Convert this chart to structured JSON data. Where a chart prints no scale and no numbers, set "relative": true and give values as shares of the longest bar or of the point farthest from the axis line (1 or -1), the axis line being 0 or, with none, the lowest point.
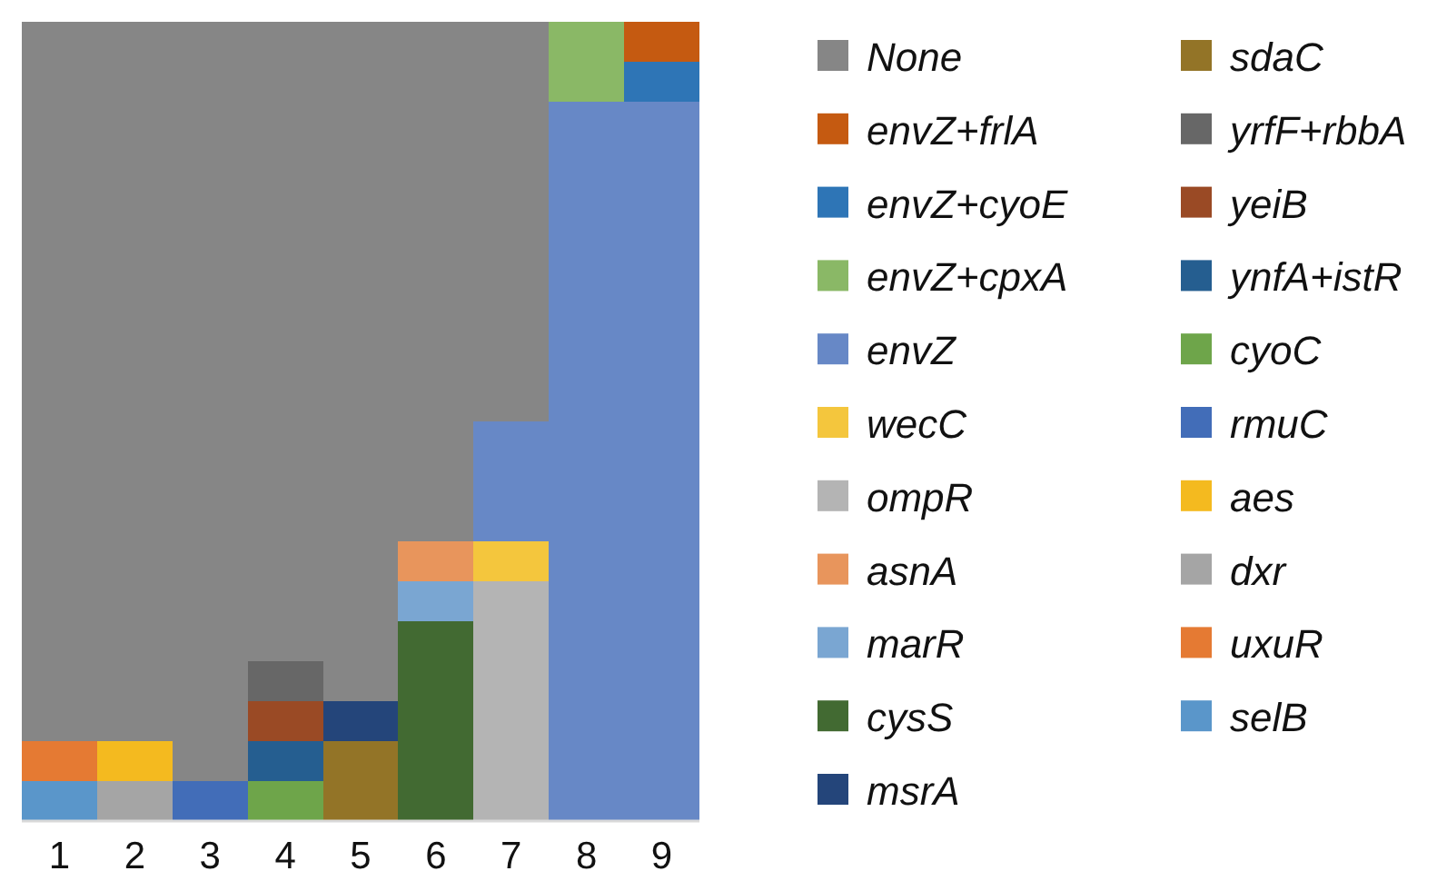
{
  "chart_data": {
    "type": "bar",
    "stacked": true,
    "relative": true,
    "legend": "right",
    "categories": [
      "1",
      "2",
      "3",
      "4",
      "5",
      "6",
      "7",
      "8",
      "9"
    ],
    "series": [
      {
        "name": "selB",
        "color": "#5a96ca",
        "values": [
          0.05,
          null,
          null,
          null,
          null,
          null,
          null,
          null,
          null
        ]
      },
      {
        "name": "uxuR",
        "color": "#e57a33",
        "values": [
          0.05,
          null,
          null,
          null,
          null,
          null,
          null,
          null,
          null
        ]
      },
      {
        "name": "dxr",
        "color": "#a5a5a5",
        "values": [
          null,
          0.05,
          null,
          null,
          null,
          null,
          null,
          null,
          null
        ]
      },
      {
        "name": "aes",
        "color": "#f4ba1f",
        "values": [
          null,
          0.05,
          null,
          null,
          null,
          null,
          null,
          null,
          null
        ]
      },
      {
        "name": "rmuC",
        "color": "#426db8",
        "values": [
          null,
          null,
          0.05,
          null,
          null,
          null,
          null,
          null,
          null
        ]
      },
      {
        "name": "cyoC",
        "color": "#6ea54a",
        "values": [
          null,
          null,
          null,
          0.05,
          null,
          null,
          null,
          null,
          null
        ]
      },
      {
        "name": "ynfA+istR",
        "color": "#255e90",
        "values": [
          null,
          null,
          null,
          0.05,
          null,
          null,
          null,
          null,
          null
        ]
      },
      {
        "name": "yeiB",
        "color": "#9a4a25",
        "values": [
          null,
          null,
          null,
          0.05,
          null,
          null,
          null,
          null,
          null
        ]
      },
      {
        "name": "yrfF+rbbA",
        "color": "#676767",
        "values": [
          null,
          null,
          null,
          0.05,
          null,
          null,
          null,
          null,
          null
        ]
      },
      {
        "name": "sdaC",
        "color": "#937427",
        "values": [
          null,
          null,
          null,
          null,
          0.1,
          null,
          null,
          null,
          null
        ]
      },
      {
        "name": "msrA",
        "color": "#24457a",
        "values": [
          null,
          null,
          null,
          null,
          0.05,
          null,
          null,
          null,
          null
        ]
      },
      {
        "name": "cysS",
        "color": "#426a32",
        "values": [
          null,
          null,
          null,
          null,
          null,
          0.25,
          null,
          null,
          null
        ]
      },
      {
        "name": "marR",
        "color": "#7aa6d2",
        "values": [
          null,
          null,
          null,
          null,
          null,
          0.05,
          null,
          null,
          null
        ]
      },
      {
        "name": "asnA",
        "color": "#e8955c",
        "values": [
          null,
          null,
          null,
          null,
          null,
          0.05,
          null,
          null,
          null
        ]
      },
      {
        "name": "ompR",
        "color": "#b4b4b4",
        "values": [
          null,
          null,
          null,
          null,
          null,
          null,
          0.3,
          null,
          null
        ]
      },
      {
        "name": "wecC",
        "color": "#f4c63d",
        "values": [
          null,
          null,
          null,
          null,
          null,
          null,
          0.05,
          null,
          null
        ]
      },
      {
        "name": "envZ",
        "color": "#6788c6",
        "values": [
          null,
          null,
          null,
          null,
          null,
          null,
          0.15,
          0.9,
          0.9
        ]
      },
      {
        "name": "envZ+cpxA",
        "color": "#8ab866",
        "values": [
          null,
          null,
          null,
          null,
          null,
          null,
          null,
          0.1,
          null
        ]
      },
      {
        "name": "envZ+cyoE",
        "color": "#2e75b6",
        "values": [
          null,
          null,
          null,
          null,
          null,
          null,
          null,
          null,
          0.05
        ]
      },
      {
        "name": "envZ+frlA",
        "color": "#c55a11",
        "values": [
          null,
          null,
          null,
          null,
          null,
          null,
          null,
          null,
          0.05
        ]
      },
      {
        "name": "None",
        "color": "#868686",
        "values": [
          0.9,
          0.9,
          0.95,
          0.8,
          0.85,
          0.65,
          0.5,
          null,
          null
        ]
      }
    ]
  }
}
